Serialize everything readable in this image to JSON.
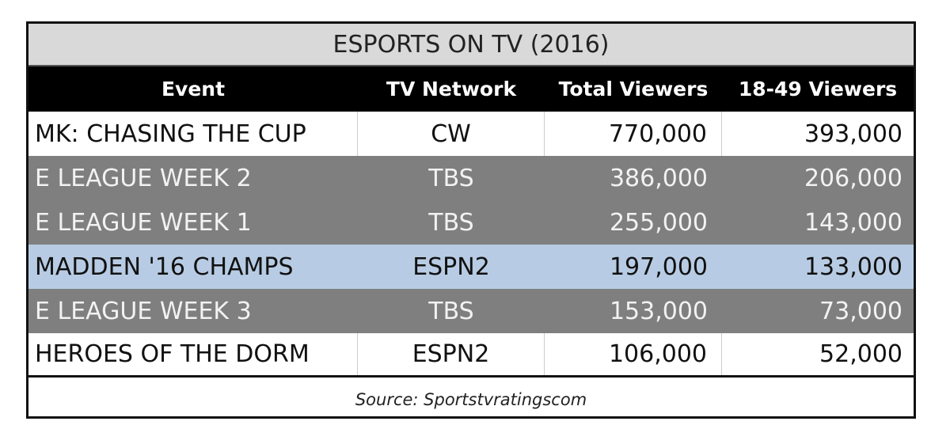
{
  "table": {
    "title": "ESPORTS ON TV (2016)",
    "headers": [
      "Event",
      "TV Network",
      "Total Viewers",
      "18-49 Viewers"
    ],
    "rows": [
      {
        "event": "MK: CHASING THE CUP",
        "network": "CW",
        "total": "770,000",
        "demo": "393,000",
        "style": "white"
      },
      {
        "event": "E LEAGUE WEEK 2",
        "network": "TBS",
        "total": "386,000",
        "demo": "206,000",
        "style": "gray"
      },
      {
        "event": "E LEAGUE WEEK 1",
        "network": "TBS",
        "total": "255,000",
        "demo": "143,000",
        "style": "gray"
      },
      {
        "event": "MADDEN '16 CHAMPS",
        "network": "ESPN2",
        "total": "197,000",
        "demo": "133,000",
        "style": "blue"
      },
      {
        "event": "E LEAGUE WEEK 3",
        "network": "TBS",
        "total": "153,000",
        "demo": "73,000",
        "style": "gray"
      },
      {
        "event": "HEROES OF THE DORM",
        "network": "ESPN2",
        "total": "106,000",
        "demo": "52,000",
        "style": "white"
      }
    ],
    "source": "Source: Sportstvratingscom"
  },
  "colors": {
    "title_bg": "#d9d9d9",
    "header_bg": "#000000",
    "gray_row": "#7f7f7f",
    "highlight_row": "#b7cce4",
    "white_row": "#ffffff"
  },
  "chart_data": {
    "type": "table",
    "title": "ESPORTS ON TV (2016)",
    "columns": [
      "Event",
      "TV Network",
      "Total Viewers",
      "18-49 Viewers"
    ],
    "rows": [
      [
        "MK: CHASING THE CUP",
        "CW",
        770000,
        393000
      ],
      [
        "E LEAGUE WEEK 2",
        "TBS",
        386000,
        206000
      ],
      [
        "E LEAGUE WEEK 1",
        "TBS",
        255000,
        143000
      ],
      [
        "MADDEN '16 CHAMPS",
        "ESPN2",
        197000,
        133000
      ],
      [
        "E LEAGUE WEEK 3",
        "TBS",
        153000,
        73000
      ],
      [
        "HEROES OF THE DORM",
        "ESPN2",
        106000,
        52000
      ]
    ],
    "annotations": [
      "Source: Sportstvratingscom"
    ]
  }
}
